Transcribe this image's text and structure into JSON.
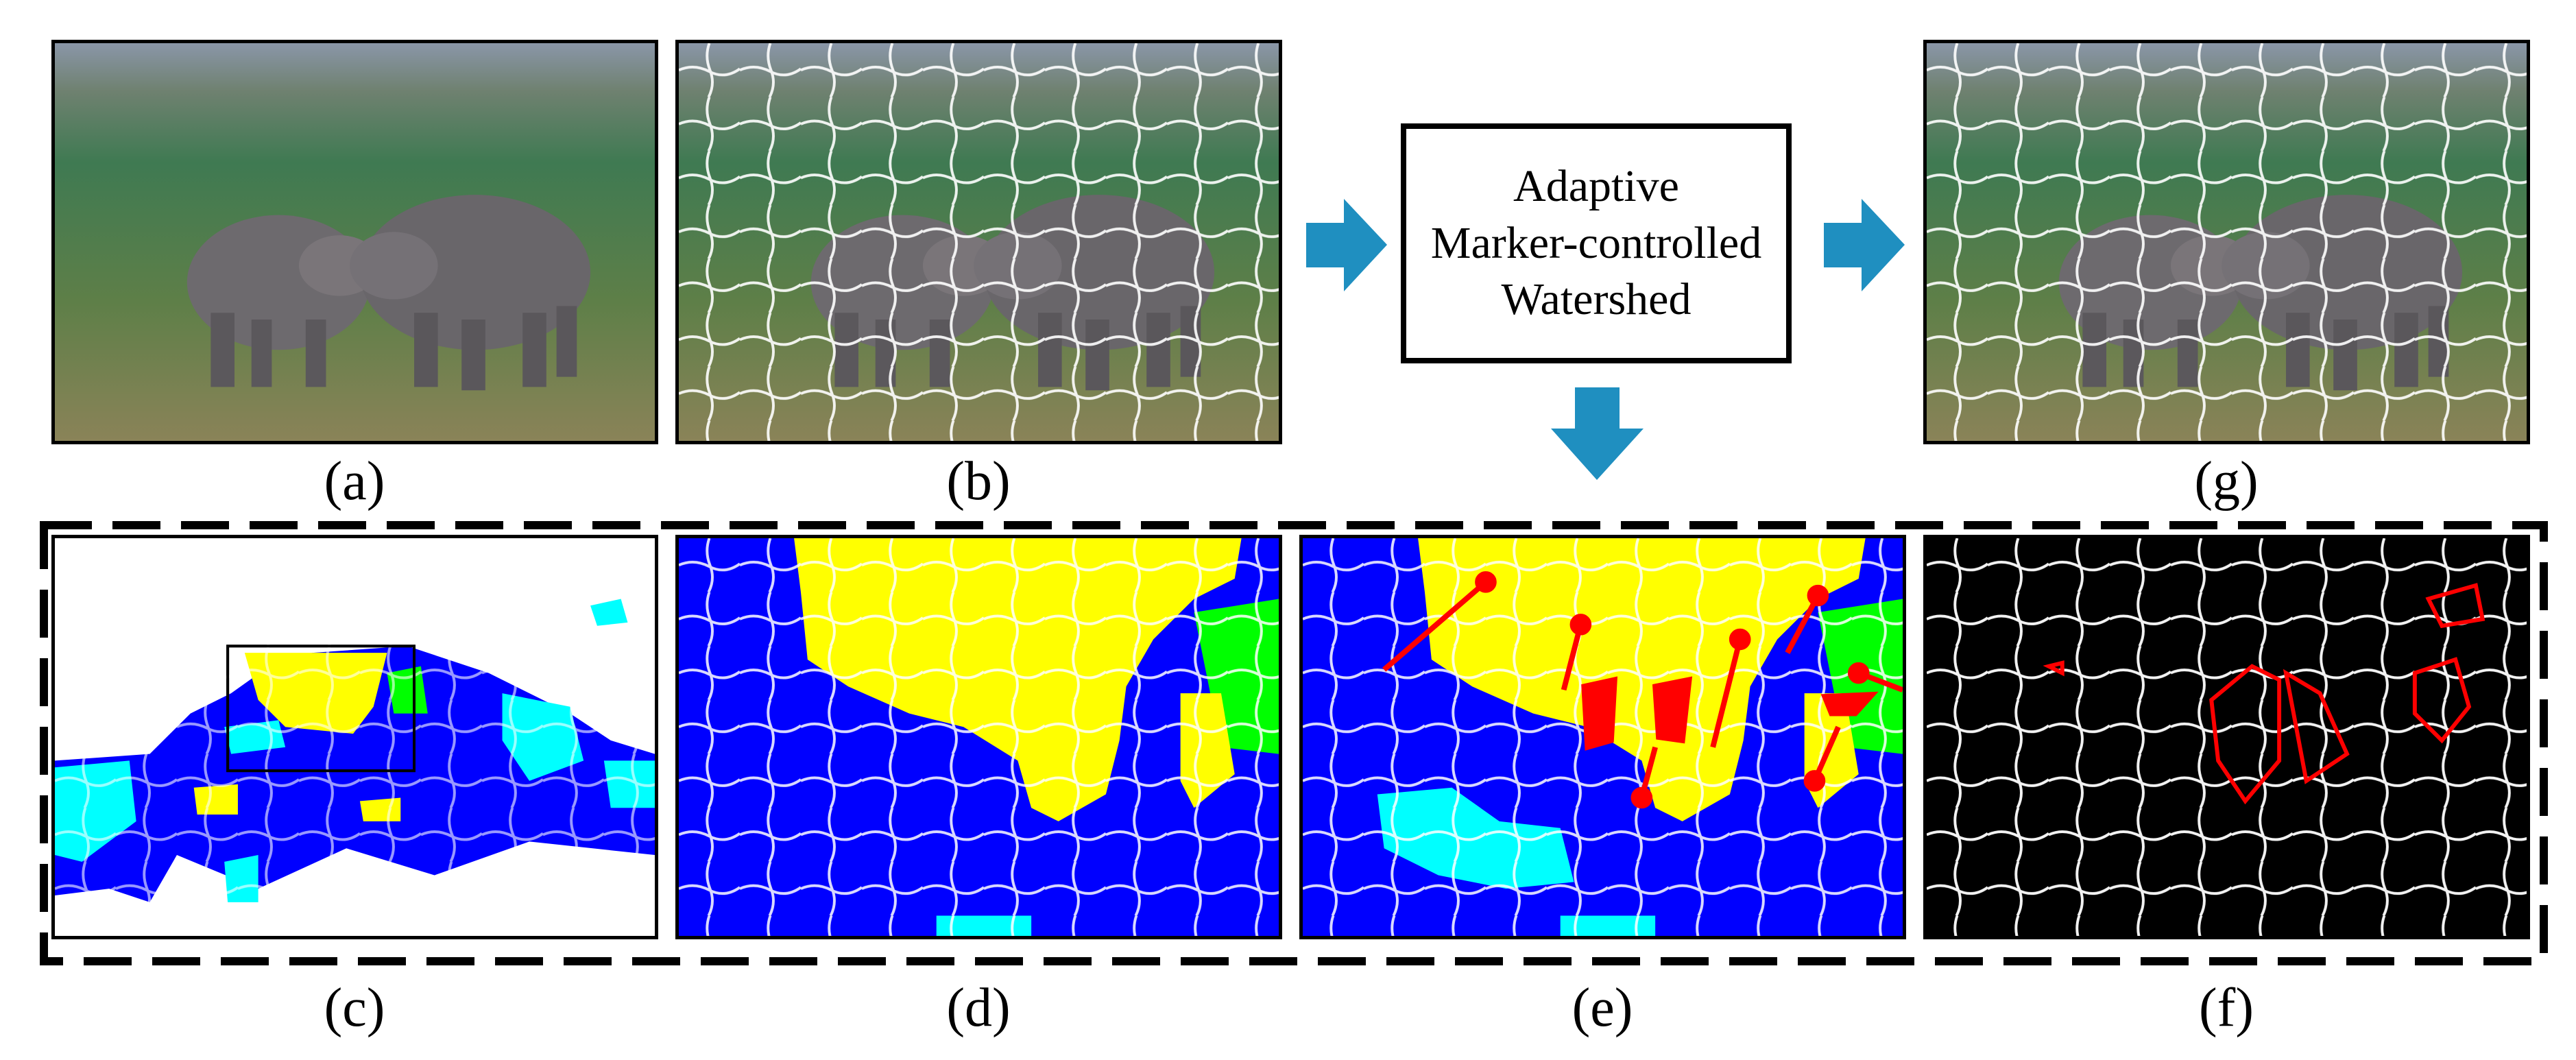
{
  "captions": {
    "a": "(a)",
    "b": "(b)",
    "c": "(c)",
    "d": "(d)",
    "e": "(e)",
    "f": "(f)",
    "g": "(g)"
  },
  "process_box": {
    "line1": "Adaptive",
    "line2": "Marker-controlled",
    "line3": "Watershed"
  },
  "colors": {
    "arrow": "#1f8fc0",
    "blue_region": "#0000ff",
    "yellow_region": "#ffff00",
    "cyan_region": "#00ffff",
    "green_region": "#00ff00",
    "red_marker": "#ff0000",
    "boundary": "#ffffff",
    "background_black": "#000000"
  },
  "icons": {
    "arrow_right": "arrow-right-icon",
    "arrow_down": "arrow-down-icon"
  }
}
